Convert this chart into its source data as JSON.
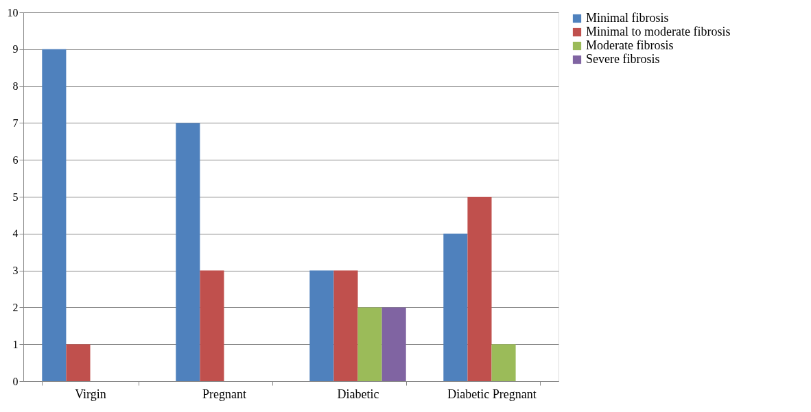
{
  "chart_data": {
    "type": "bar",
    "categories": [
      "Virgin",
      "Pregnant",
      "Diabetic",
      "Diabetic Pregnant"
    ],
    "series": [
      {
        "name": "Minimal fibrosis",
        "color": "#4f81bd",
        "values": [
          9,
          7,
          3,
          4
        ]
      },
      {
        "name": "Minimal to moderate fibrosis",
        "color": "#c0504d",
        "values": [
          1,
          3,
          3,
          5
        ]
      },
      {
        "name": "Moderate fibrosis",
        "color": "#9bbb59",
        "values": [
          0,
          0,
          2,
          1
        ]
      },
      {
        "name": "Severe fibrosis",
        "color": "#8064a2",
        "values": [
          0,
          0,
          2,
          0
        ]
      }
    ],
    "ylim": [
      0,
      10
    ],
    "yticks": [
      0,
      1,
      2,
      3,
      4,
      5,
      6,
      7,
      8,
      9,
      10
    ],
    "grid": "y",
    "legend": "right"
  }
}
